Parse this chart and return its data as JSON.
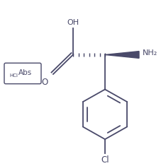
{
  "bg_color": "#ffffff",
  "line_color": "#4a4a6a",
  "fig_width": 2.34,
  "fig_height": 2.35,
  "dpi": 100,
  "oh_label": "OH",
  "o_label": "O",
  "nh2_label": "NH₂",
  "cl_label": "Cl",
  "abs_text": "Abs",
  "hcl_text": "HCl"
}
